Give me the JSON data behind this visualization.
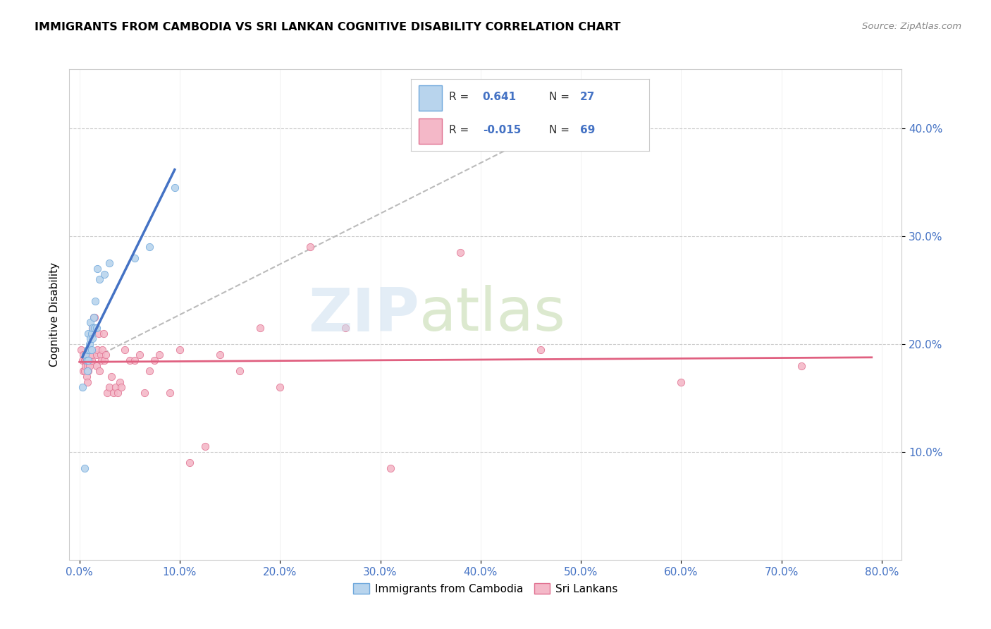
{
  "title": "IMMIGRANTS FROM CAMBODIA VS SRI LANKAN COGNITIVE DISABILITY CORRELATION CHART",
  "source": "Source: ZipAtlas.com",
  "ylabel": "Cognitive Disability",
  "y_ticks": [
    0.1,
    0.2,
    0.3,
    0.4
  ],
  "y_tick_labels": [
    "10.0%",
    "20.0%",
    "30.0%",
    "40.0%"
  ],
  "x_ticks": [
    0.0,
    0.1,
    0.2,
    0.3,
    0.4,
    0.5,
    0.6,
    0.7,
    0.8
  ],
  "r1": 0.641,
  "n1": 27,
  "r2": -0.015,
  "n2": 69,
  "color_cambodia_fill": "#b8d4ed",
  "color_cambodia_edge": "#6fa8dc",
  "color_srilanka_fill": "#f4b8c8",
  "color_srilanka_edge": "#e07090",
  "color_line_cambodia": "#4472c4",
  "color_line_srilanka": "#e06080",
  "cambodia_x": [
    0.003,
    0.005,
    0.006,
    0.007,
    0.008,
    0.008,
    0.009,
    0.009,
    0.01,
    0.01,
    0.011,
    0.011,
    0.012,
    0.012,
    0.013,
    0.013,
    0.014,
    0.015,
    0.016,
    0.017,
    0.018,
    0.02,
    0.025,
    0.03,
    0.055,
    0.07,
    0.095
  ],
  "cambodia_y": [
    0.16,
    0.085,
    0.19,
    0.185,
    0.195,
    0.175,
    0.185,
    0.21,
    0.195,
    0.2,
    0.205,
    0.22,
    0.195,
    0.21,
    0.215,
    0.205,
    0.225,
    0.215,
    0.24,
    0.215,
    0.27,
    0.26,
    0.265,
    0.275,
    0.28,
    0.29,
    0.345
  ],
  "srilanka_x": [
    0.002,
    0.003,
    0.004,
    0.004,
    0.005,
    0.005,
    0.006,
    0.006,
    0.006,
    0.007,
    0.007,
    0.008,
    0.008,
    0.008,
    0.009,
    0.009,
    0.01,
    0.01,
    0.011,
    0.012,
    0.012,
    0.013,
    0.013,
    0.014,
    0.014,
    0.015,
    0.016,
    0.017,
    0.017,
    0.018,
    0.019,
    0.02,
    0.021,
    0.022,
    0.023,
    0.024,
    0.025,
    0.026,
    0.028,
    0.03,
    0.032,
    0.034,
    0.036,
    0.038,
    0.04,
    0.042,
    0.045,
    0.05,
    0.055,
    0.06,
    0.065,
    0.07,
    0.075,
    0.08,
    0.09,
    0.1,
    0.11,
    0.125,
    0.14,
    0.16,
    0.18,
    0.2,
    0.23,
    0.265,
    0.31,
    0.38,
    0.46,
    0.6,
    0.72
  ],
  "srilanka_y": [
    0.195,
    0.185,
    0.175,
    0.19,
    0.185,
    0.175,
    0.18,
    0.185,
    0.19,
    0.17,
    0.185,
    0.165,
    0.18,
    0.185,
    0.175,
    0.185,
    0.185,
    0.18,
    0.19,
    0.185,
    0.19,
    0.215,
    0.215,
    0.225,
    0.215,
    0.225,
    0.215,
    0.18,
    0.19,
    0.195,
    0.21,
    0.175,
    0.19,
    0.185,
    0.195,
    0.21,
    0.185,
    0.19,
    0.155,
    0.16,
    0.17,
    0.155,
    0.16,
    0.155,
    0.165,
    0.16,
    0.195,
    0.185,
    0.185,
    0.19,
    0.155,
    0.175,
    0.185,
    0.19,
    0.155,
    0.195,
    0.09,
    0.105,
    0.19,
    0.175,
    0.215,
    0.16,
    0.29,
    0.215,
    0.085,
    0.285,
    0.195,
    0.165,
    0.18
  ],
  "xlim": [
    -0.01,
    0.82
  ],
  "ylim": [
    0.0,
    0.455
  ],
  "dash_line_x": [
    0.01,
    0.5
  ],
  "dash_line_y": [
    0.185,
    0.415
  ]
}
